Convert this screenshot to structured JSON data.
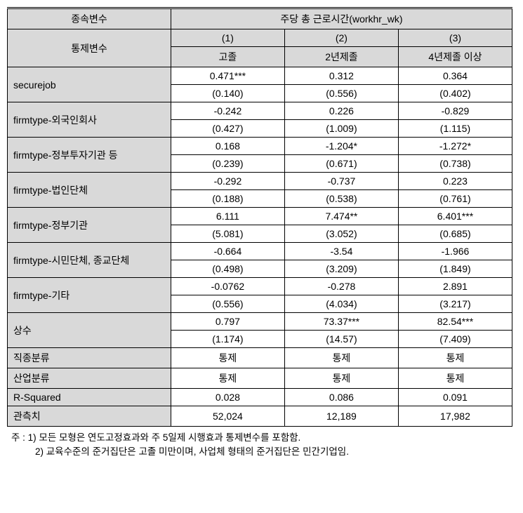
{
  "header": {
    "dep_var_label": "종속변수",
    "dep_var_value": "주당 총 근로시간(workhr_wk)",
    "control_var_label": "통제변수",
    "cols": [
      {
        "num": "(1)",
        "name": "고졸"
      },
      {
        "num": "(2)",
        "name": "2년제졸"
      },
      {
        "num": "(3)",
        "name": "4년제졸 이상"
      }
    ]
  },
  "rows": [
    {
      "label": "securejob",
      "vals": [
        {
          "est": "0.471***",
          "se": "(0.140)"
        },
        {
          "est": "0.312",
          "se": "(0.556)"
        },
        {
          "est": "0.364",
          "se": "(0.402)"
        }
      ]
    },
    {
      "label": "firmtype-외국인회사",
      "vals": [
        {
          "est": "-0.242",
          "se": "(0.427)"
        },
        {
          "est": "0.226",
          "se": "(1.009)"
        },
        {
          "est": "-0.829",
          "se": "(1.115)"
        }
      ]
    },
    {
      "label": "firmtype-정부투자기관 등",
      "vals": [
        {
          "est": "0.168",
          "se": "(0.239)"
        },
        {
          "est": "-1.204*",
          "se": "(0.671)"
        },
        {
          "est": "-1.272*",
          "se": "(0.738)"
        }
      ]
    },
    {
      "label": "firmtype-법인단체",
      "vals": [
        {
          "est": "-0.292",
          "se": "(0.188)"
        },
        {
          "est": "-0.737",
          "se": "(0.538)"
        },
        {
          "est": "0.223",
          "se": "(0.761)"
        }
      ]
    },
    {
      "label": "firmtype-정부기관",
      "vals": [
        {
          "est": "6.111",
          "se": "(5.081)"
        },
        {
          "est": "7.474**",
          "se": "(3.052)"
        },
        {
          "est": "6.401***",
          "se": "(0.685)"
        }
      ]
    },
    {
      "label": "firmtype-시민단체, 종교단체",
      "vals": [
        {
          "est": "-0.664",
          "se": "(0.498)"
        },
        {
          "est": "-3.54",
          "se": "(3.209)"
        },
        {
          "est": "-1.966",
          "se": "(1.849)"
        }
      ]
    },
    {
      "label": "firmtype-기타",
      "vals": [
        {
          "est": "-0.0762",
          "se": "(0.556)"
        },
        {
          "est": "-0.278",
          "se": "(4.034)"
        },
        {
          "est": "2.891",
          "se": "(3.217)"
        }
      ]
    },
    {
      "label": "상수",
      "vals": [
        {
          "est": "0.797",
          "se": "(1.174)"
        },
        {
          "est": "73.37***",
          "se": "(14.57)"
        },
        {
          "est": "82.54***",
          "se": "(7.409)"
        }
      ]
    }
  ],
  "single_rows": [
    {
      "label": "직종분류",
      "vals": [
        "통제",
        "통제",
        "통제"
      ]
    },
    {
      "label": "산업분류",
      "vals": [
        "통제",
        "통제",
        "통제"
      ]
    },
    {
      "label": "R-Squared",
      "vals": [
        "0.028",
        "0.086",
        "0.091"
      ]
    },
    {
      "label": "관측치",
      "vals": [
        "52,024",
        "12,189",
        "17,982"
      ]
    }
  ],
  "notes": {
    "n1": "주 : 1) 모든 모형은 연도고정효과와 주 5일제 시행효과 통제변수를 포함함.",
    "n2": "2) 교육수준의 준거집단은 고졸 미만이며, 사업체 형태의 준거집단은 민간기업임."
  }
}
